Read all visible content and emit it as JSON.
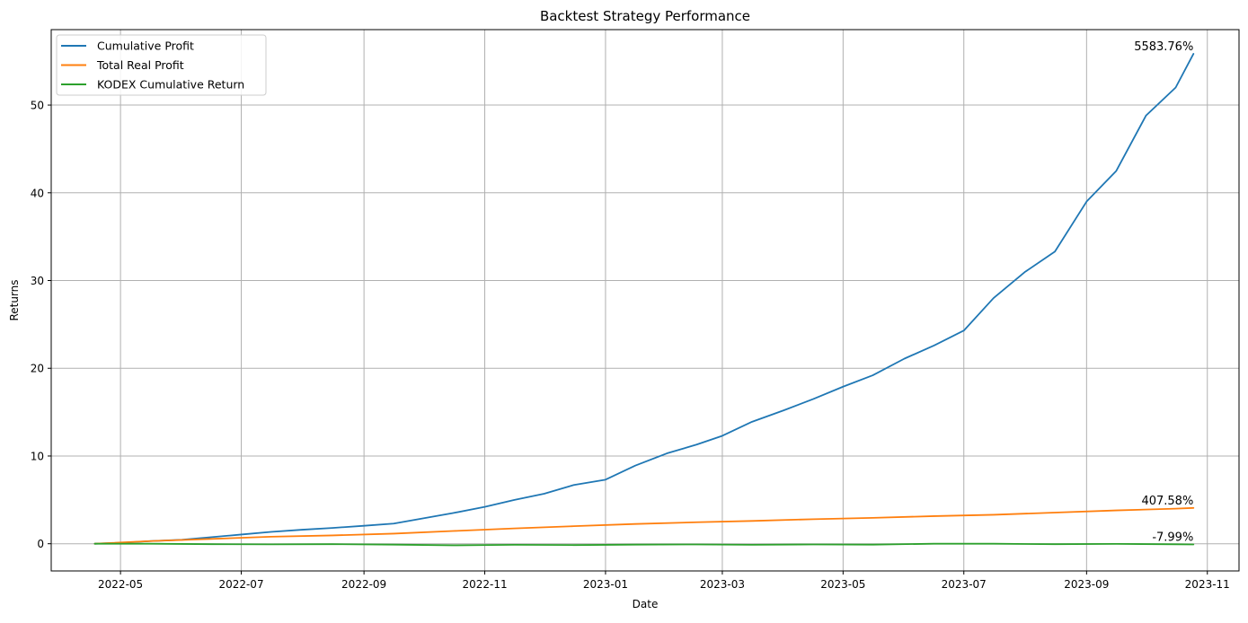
{
  "chart_data": {
    "type": "line",
    "title": "Backtest Strategy Performance",
    "xlabel": "Date",
    "ylabel": "Returns",
    "xlim": [
      "2022-03-27",
      "2023-11-17"
    ],
    "ylim": [
      -3.1,
      58.6
    ],
    "x_ticks": [
      "2022-05",
      "2022-07",
      "2022-09",
      "2022-11",
      "2023-01",
      "2023-03",
      "2023-05",
      "2023-07",
      "2023-09",
      "2023-11"
    ],
    "y_ticks": [
      0,
      10,
      20,
      30,
      40,
      50
    ],
    "grid": true,
    "legend_position": "top-left",
    "series": [
      {
        "name": "Cumulative Profit",
        "color": "#1f77b4",
        "x": [
          "2022-04-18",
          "2022-05-01",
          "2022-05-16",
          "2022-06-01",
          "2022-06-16",
          "2022-07-01",
          "2022-07-16",
          "2022-08-01",
          "2022-08-16",
          "2022-09-01",
          "2022-09-16",
          "2022-10-01",
          "2022-10-16",
          "2022-11-01",
          "2022-11-16",
          "2022-12-01",
          "2022-12-16",
          "2023-01-01",
          "2023-01-16",
          "2023-02-01",
          "2023-02-16",
          "2023-03-01",
          "2023-03-16",
          "2023-04-01",
          "2023-04-16",
          "2023-05-01",
          "2023-05-16",
          "2023-06-01",
          "2023-06-16",
          "2023-07-01",
          "2023-07-16",
          "2023-08-01",
          "2023-08-16",
          "2023-09-01",
          "2023-09-16",
          "2023-10-01",
          "2023-10-16",
          "2023-10-25"
        ],
        "values": [
          0.0,
          0.1,
          0.3,
          0.45,
          0.75,
          1.05,
          1.35,
          1.6,
          1.8,
          2.05,
          2.3,
          2.9,
          3.5,
          4.2,
          5.0,
          5.7,
          6.7,
          7.3,
          8.9,
          10.3,
          11.3,
          12.3,
          13.9,
          15.2,
          16.5,
          17.9,
          19.2,
          21.1,
          22.6,
          24.3,
          28.0,
          31.0,
          33.3,
          39.0,
          42.5,
          48.8,
          52.0,
          55.84
        ]
      },
      {
        "name": "Total Real Profit",
        "color": "#ff7f0e",
        "x": [
          "2022-04-18",
          "2022-05-16",
          "2022-06-16",
          "2022-07-16",
          "2022-08-16",
          "2022-09-16",
          "2022-10-16",
          "2022-11-16",
          "2022-12-16",
          "2023-01-16",
          "2023-02-16",
          "2023-03-16",
          "2023-04-16",
          "2023-05-16",
          "2023-06-16",
          "2023-07-16",
          "2023-08-16",
          "2023-09-16",
          "2023-10-16",
          "2023-10-25"
        ],
        "values": [
          0.0,
          0.3,
          0.55,
          0.8,
          0.95,
          1.15,
          1.45,
          1.75,
          2.0,
          2.25,
          2.45,
          2.6,
          2.8,
          2.95,
          3.15,
          3.3,
          3.55,
          3.8,
          4.0,
          4.08
        ]
      },
      {
        "name": "KODEX Cumulative Return",
        "color": "#2ca02c",
        "x": [
          "2022-04-18",
          "2022-05-16",
          "2022-06-16",
          "2022-07-16",
          "2022-08-16",
          "2022-09-16",
          "2022-10-16",
          "2022-11-16",
          "2022-12-16",
          "2023-01-16",
          "2023-02-16",
          "2023-03-16",
          "2023-04-16",
          "2023-05-16",
          "2023-06-16",
          "2023-07-16",
          "2023-08-16",
          "2023-09-16",
          "2023-10-16",
          "2023-10-25"
        ],
        "values": [
          0.0,
          0.0,
          -0.05,
          -0.07,
          -0.05,
          -0.1,
          -0.18,
          -0.12,
          -0.15,
          -0.1,
          -0.08,
          -0.12,
          -0.08,
          -0.1,
          0.0,
          0.0,
          -0.05,
          -0.02,
          -0.06,
          -0.08
        ]
      }
    ],
    "annotations": [
      {
        "text": "5583.76%",
        "x": "2023-10-25",
        "y": 55.84,
        "series": 0
      },
      {
        "text": "407.58%",
        "x": "2023-10-25",
        "y": 4.08,
        "series": 1
      },
      {
        "text": "-7.99%",
        "x": "2023-10-25",
        "y": -0.08,
        "series": 2
      }
    ]
  }
}
